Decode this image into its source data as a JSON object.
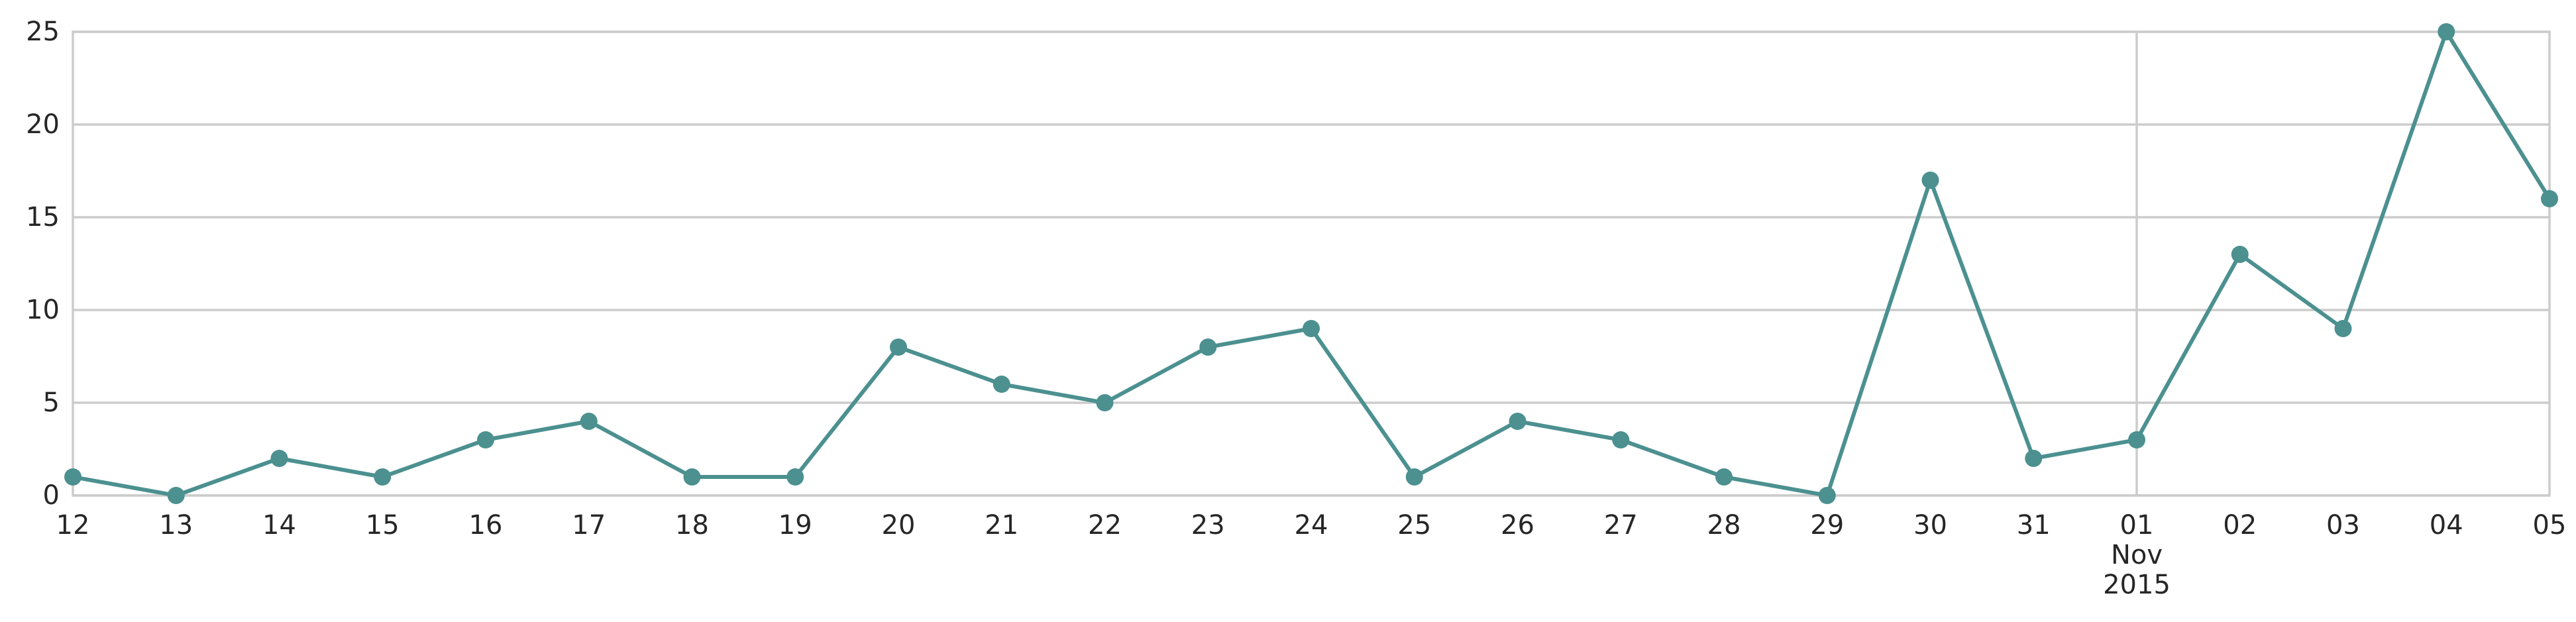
{
  "chart_data": {
    "type": "line",
    "title": "",
    "xlabel": "",
    "ylabel": "",
    "x": [
      "2015-10-12",
      "2015-10-13",
      "2015-10-14",
      "2015-10-15",
      "2015-10-16",
      "2015-10-17",
      "2015-10-18",
      "2015-10-19",
      "2015-10-20",
      "2015-10-21",
      "2015-10-22",
      "2015-10-23",
      "2015-10-24",
      "2015-10-25",
      "2015-10-26",
      "2015-10-27",
      "2015-10-28",
      "2015-10-29",
      "2015-10-30",
      "2015-10-31",
      "2015-11-01",
      "2015-11-02",
      "2015-11-03",
      "2015-11-04",
      "2015-11-05"
    ],
    "series": [
      {
        "values": [
          1,
          0,
          2,
          1,
          3,
          4,
          1,
          1,
          8,
          6,
          5,
          8,
          9,
          1,
          4,
          3,
          1,
          0,
          17,
          2,
          3,
          13,
          9,
          25,
          16
        ]
      }
    ],
    "ylim": [
      0,
      25
    ],
    "y_ticks": [
      "0",
      "5",
      "10",
      "15",
      "20",
      "25"
    ],
    "x_tick_labels": [
      {
        "label": "12"
      },
      {
        "label": "13"
      },
      {
        "label": "14"
      },
      {
        "label": "15"
      },
      {
        "label": "16"
      },
      {
        "label": "17"
      },
      {
        "label": "18"
      },
      {
        "label": "19"
      },
      {
        "label": "20"
      },
      {
        "label": "21"
      },
      {
        "label": "22"
      },
      {
        "label": "23"
      },
      {
        "label": "24"
      },
      {
        "label": "25"
      },
      {
        "label": "26"
      },
      {
        "label": "27"
      },
      {
        "label": "28"
      },
      {
        "label": "29"
      },
      {
        "label": "30"
      },
      {
        "label": "31"
      },
      {
        "label": "01",
        "sub": [
          "Nov",
          "2015"
        ]
      },
      {
        "label": "02"
      },
      {
        "label": "03"
      },
      {
        "label": "04"
      },
      {
        "label": "05"
      }
    ],
    "grid": "horizontal, plus vertical line at month boundary",
    "legend": "none",
    "colors": {
      "series": "#4c9090",
      "grid": "#cccccc",
      "text": "#262626"
    }
  }
}
